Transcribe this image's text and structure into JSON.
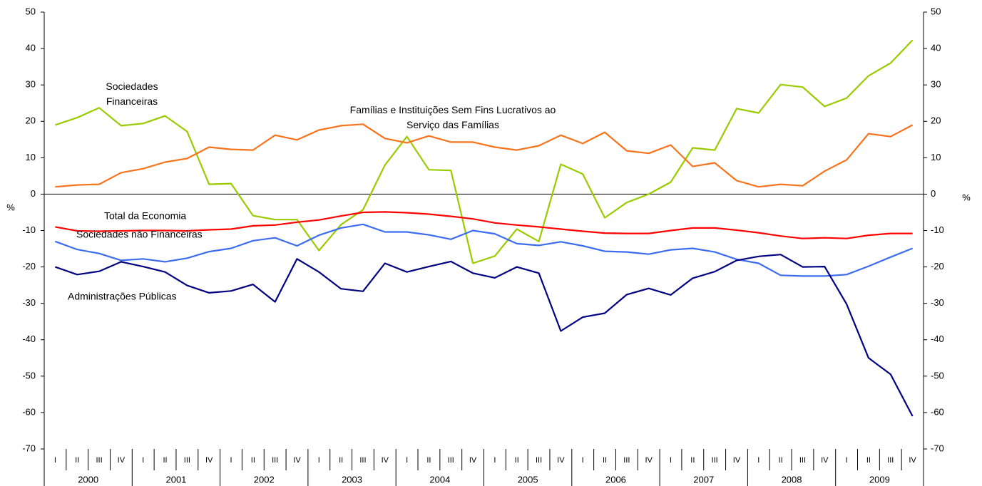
{
  "chart_data": {
    "type": "line",
    "categories": [
      "I",
      "II",
      "III",
      "IV",
      "I",
      "II",
      "III",
      "IV",
      "I",
      "II",
      "III",
      "IV",
      "I",
      "II",
      "III",
      "IV",
      "I",
      "II",
      "III",
      "IV",
      "I",
      "II",
      "III",
      "IV",
      "I",
      "II",
      "III",
      "IV",
      "I",
      "II",
      "III",
      "IV",
      "I",
      "II",
      "III",
      "IV",
      "I",
      "II",
      "III",
      "IV"
    ],
    "category_groups": [
      "2000",
      "2001",
      "2002",
      "2003",
      "2004",
      "2005",
      "2006",
      "2007",
      "2008",
      "2009"
    ],
    "ylabel": "%",
    "y2label": "%",
    "ylim": [
      -70,
      50
    ],
    "yticks": [
      -70,
      -60,
      -50,
      -40,
      -30,
      -20,
      -10,
      0,
      10,
      20,
      30,
      40,
      50
    ],
    "y2lim": [
      -70,
      50
    ],
    "y2ticks": [
      -70,
      -60,
      -50,
      -40,
      -30,
      -20,
      -10,
      0,
      10,
      20,
      30,
      40,
      50
    ],
    "series": [
      {
        "name": "Sociedades Financeiras",
        "color": "#99cc00",
        "values": [
          19,
          21,
          23.7,
          18.8,
          19.4,
          21.5,
          17.2,
          2.7,
          2.9,
          -5.9,
          -7,
          -7,
          -15.5,
          -8.4,
          -4.3,
          8,
          15.8,
          6.7,
          6.5,
          -19,
          -17,
          -9.6,
          -13,
          8.2,
          5.5,
          -6.5,
          -2.3,
          0,
          3.3,
          12.7,
          12.1,
          23.5,
          22.3,
          30.1,
          29.4,
          24.1,
          26.4,
          32.5,
          36,
          42.3
        ]
      },
      {
        "name": "Famílias e Instituições Sem Fins Lucrativos ao Serviço das Famílias",
        "color": "#f7731c",
        "values": [
          2,
          2.5,
          2.7,
          5.9,
          7,
          8.8,
          9.8,
          12.9,
          12.3,
          12.1,
          16.2,
          14.9,
          17.6,
          18.8,
          19.2,
          15.3,
          14.1,
          16,
          14.3,
          14.3,
          12.9,
          12.1,
          13.3,
          16.2,
          13.9,
          17,
          11.9,
          11.2,
          13.5,
          7.6,
          8.6,
          3.7,
          2,
          2.7,
          2.3,
          6.3,
          9.4,
          16.6,
          15.8,
          19
        ]
      },
      {
        "name": "Total da Economia",
        "color": "#ff0000",
        "values": [
          -9,
          -10.1,
          -10.2,
          -10.1,
          -10,
          -10,
          -10.1,
          -9.8,
          -9.6,
          -8.7,
          -8.5,
          -7.7,
          -7.1,
          -6,
          -5,
          -4.9,
          -5.1,
          -5.5,
          -6.1,
          -6.8,
          -7.9,
          -8.5,
          -9,
          -9.6,
          -10.2,
          -10.7,
          -10.8,
          -10.8,
          -10,
          -9.3,
          -9.3,
          -9.9,
          -10.6,
          -11.5,
          -12.2,
          -12,
          -12.2,
          -11.3,
          -10.8,
          -10.8
        ]
      },
      {
        "name": "Sociedades não Financeiras",
        "color": "#3c6cf0",
        "values": [
          -13,
          -15.2,
          -16.3,
          -18.2,
          -17.8,
          -18.6,
          -17.6,
          -15.8,
          -14.9,
          -12.8,
          -12,
          -14.2,
          -11.3,
          -9.3,
          -8.3,
          -10.4,
          -10.4,
          -11.2,
          -12.4,
          -10,
          -10.9,
          -13.6,
          -14.1,
          -13.1,
          -14.2,
          -15.7,
          -15.9,
          -16.5,
          -15.3,
          -14.9,
          -15.9,
          -17.9,
          -19,
          -22.3,
          -22.5,
          -22.5,
          -22.1,
          -19.8,
          -17.3,
          -14.9
        ]
      },
      {
        "name": "Administrações Públicas",
        "color": "#000080",
        "values": [
          -20,
          -22.1,
          -21.2,
          -18.6,
          -19.9,
          -21.4,
          -25.1,
          -27.1,
          -26.6,
          -24.8,
          -29.6,
          -17.8,
          -21.4,
          -26,
          -26.7,
          -19,
          -21.4,
          -19.9,
          -18.5,
          -21.7,
          -23,
          -20,
          -21.7,
          -37.6,
          -33.8,
          -32.7,
          -27.6,
          -25.9,
          -27.7,
          -23.1,
          -21.3,
          -18.2,
          -17.1,
          -16.6,
          -20,
          -19.9,
          -30.2,
          -45,
          -49.5,
          -61
        ]
      }
    ]
  }
}
